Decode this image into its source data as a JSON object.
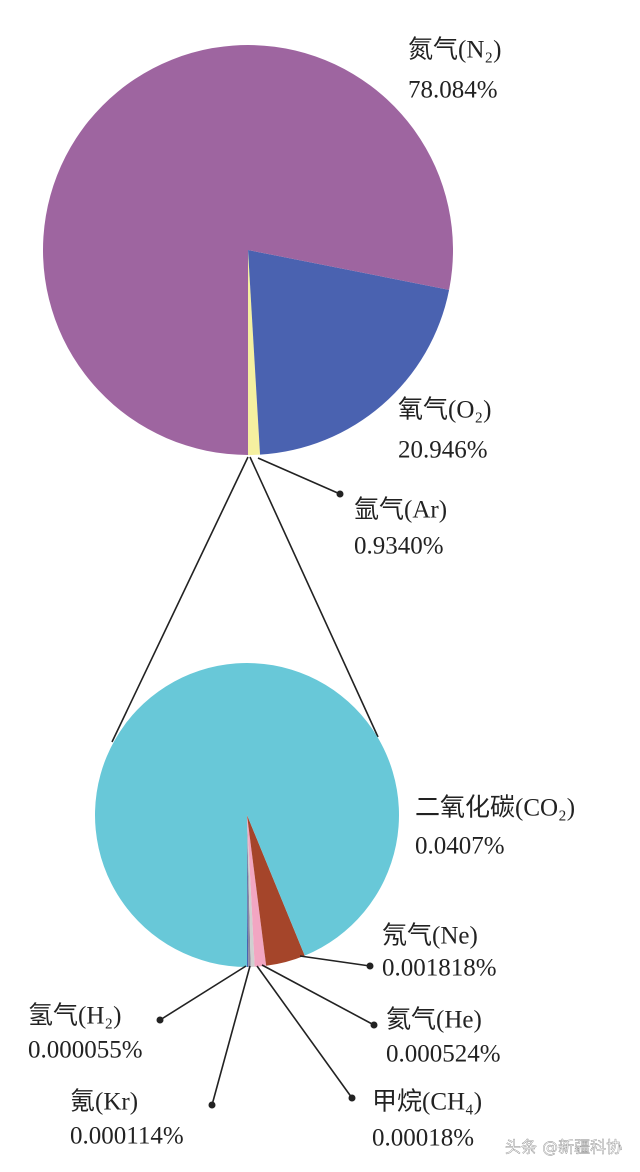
{
  "chart_data": [
    {
      "type": "pie",
      "categories": [
        "氮气(N₂)",
        "氧气(O₂)",
        "氩气(Ar)"
      ],
      "values": [
        78.084,
        20.946,
        0.934
      ],
      "value_labels": [
        "78.084%",
        "20.946%",
        "0.9340%"
      ],
      "colors": [
        "#9e65a0",
        "#4a62b0",
        "#f5f0a0"
      ]
    },
    {
      "type": "pie",
      "categories": [
        "二氧化碳(CO₂)",
        "氖气(Ne)",
        "氦气(He)",
        "甲烷(CH₄)",
        "氪(Kr)",
        "氢气(H₂)"
      ],
      "values": [
        0.0407,
        0.001818,
        0.000524,
        0.00018,
        0.000114,
        5.5e-05
      ],
      "value_labels": [
        "0.0407%",
        "0.001818%",
        "0.000524%",
        "0.00018%",
        "0.000114%",
        "0.000055%"
      ],
      "colors": [
        "#68c8d8",
        "#a5452a",
        "#f2a6c2",
        "#d0d0d0",
        "#8a8aa0",
        "#4a62b0"
      ]
    }
  ],
  "watermark": "头条 @新疆科协"
}
